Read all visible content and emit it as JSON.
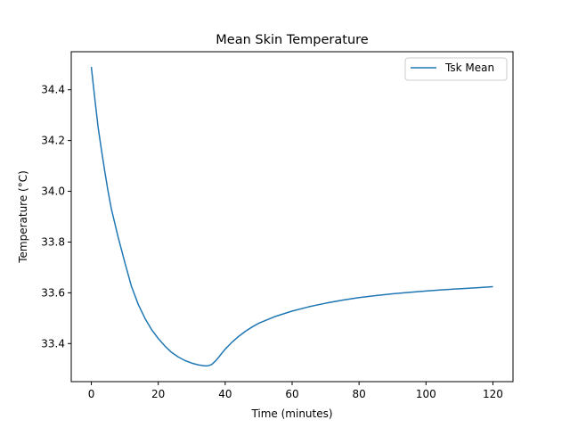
{
  "chart_data": {
    "type": "line",
    "title": "Mean Skin Temperature",
    "xlabel": "Time (minutes)",
    "ylabel": "Temperature (°C)",
    "xlim": [
      -6,
      126
    ],
    "ylim": [
      33.25,
      34.55
    ],
    "xticks": [
      0,
      20,
      40,
      60,
      80,
      100,
      120
    ],
    "yticks": [
      33.4,
      33.6,
      33.8,
      34.0,
      34.2,
      34.4
    ],
    "ytick_labels": [
      "33.4",
      "33.6",
      "33.8",
      "34.0",
      "34.2",
      "34.4"
    ],
    "grid": false,
    "legend_position": "top-right",
    "series": [
      {
        "name": "Tsk Mean",
        "color": "#1f77b4",
        "x": [
          0,
          1,
          2,
          3,
          4,
          5,
          6,
          8,
          10,
          12,
          14,
          16,
          18,
          20,
          22,
          24,
          26,
          28,
          30,
          32,
          34,
          35,
          36,
          37,
          38,
          39,
          40,
          42,
          44,
          46,
          48,
          50,
          55,
          60,
          65,
          70,
          75,
          80,
          85,
          90,
          95,
          100,
          105,
          110,
          115,
          120
        ],
        "y": [
          34.49,
          34.37,
          34.255,
          34.165,
          34.08,
          34.0,
          33.93,
          33.82,
          33.72,
          33.625,
          33.555,
          33.5,
          33.455,
          33.42,
          33.39,
          33.365,
          33.347,
          33.333,
          33.323,
          33.316,
          33.312,
          33.313,
          33.318,
          33.33,
          33.345,
          33.362,
          33.378,
          33.405,
          33.428,
          33.448,
          33.465,
          33.48,
          33.507,
          33.528,
          33.545,
          33.559,
          33.571,
          33.581,
          33.589,
          33.596,
          33.602,
          33.607,
          33.612,
          33.616,
          33.62,
          33.624
        ]
      }
    ]
  }
}
